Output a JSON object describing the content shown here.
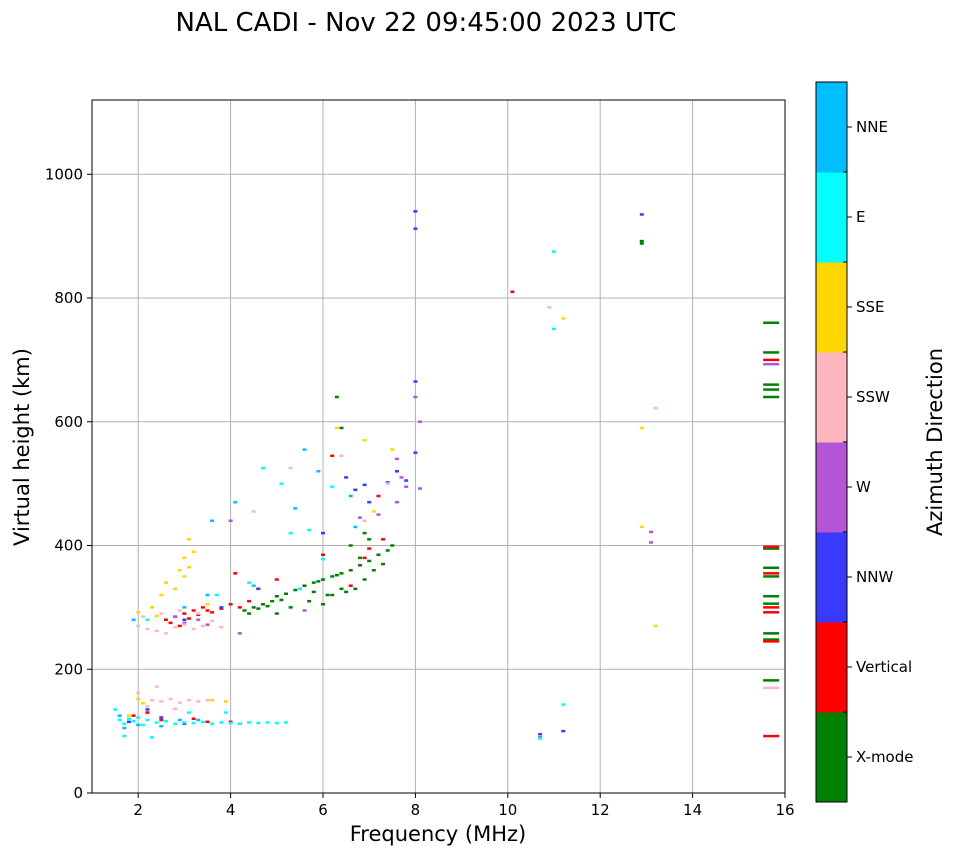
{
  "chart_data": {
    "type": "scatter",
    "title": "NAL CADI - Nov 22 09:45:00 2023 UTC",
    "xlabel": "Frequency (MHz)",
    "ylabel": "Virtual height (km)",
    "xlim": [
      1,
      16
    ],
    "ylim": [
      0,
      1120
    ],
    "xticks": [
      2,
      4,
      6,
      8,
      10,
      12,
      14,
      16
    ],
    "yticks": [
      0,
      200,
      400,
      600,
      800,
      1000
    ],
    "grid": true,
    "colorbar": {
      "title": "Azimuth Direction",
      "categories": [
        {
          "name": "X-mode",
          "color": "#008000"
        },
        {
          "name": "Vertical",
          "color": "#ff0000"
        },
        {
          "name": "NNW",
          "color": "#3a3aff"
        },
        {
          "name": "W",
          "color": "#b455d6"
        },
        {
          "name": "SSW",
          "color": "#ffb6c1"
        },
        {
          "name": "SSE",
          "color": "#ffd700"
        },
        {
          "name": "E",
          "color": "#00ffff"
        },
        {
          "name": "NNE",
          "color": "#00bfff"
        }
      ]
    },
    "series": [
      {
        "name": "X-mode",
        "points": [
          [
            4.3,
            295
          ],
          [
            4.5,
            300
          ],
          [
            4.7,
            305
          ],
          [
            4.9,
            310
          ],
          [
            5.0,
            318
          ],
          [
            5.2,
            322
          ],
          [
            5.4,
            328
          ],
          [
            5.6,
            335
          ],
          [
            5.8,
            340
          ],
          [
            6.0,
            345
          ],
          [
            6.2,
            350
          ],
          [
            6.4,
            355
          ],
          [
            6.6,
            360
          ],
          [
            6.8,
            368
          ],
          [
            7.0,
            375
          ],
          [
            7.2,
            385
          ],
          [
            7.4,
            392
          ],
          [
            4.4,
            290
          ],
          [
            4.8,
            302
          ],
          [
            5.1,
            312
          ],
          [
            5.5,
            330
          ],
          [
            5.9,
            342
          ],
          [
            6.3,
            352
          ],
          [
            6.5,
            325
          ],
          [
            6.7,
            330
          ],
          [
            6.9,
            345
          ],
          [
            7.1,
            360
          ],
          [
            4.6,
            298
          ],
          [
            5.3,
            300
          ],
          [
            5.7,
            310
          ],
          [
            6.1,
            320
          ],
          [
            6.4,
            330
          ],
          [
            6.8,
            380
          ],
          [
            7.3,
            370
          ],
          [
            6.0,
            305
          ],
          [
            6.2,
            320
          ],
          [
            6.6,
            400
          ],
          [
            7.0,
            410
          ],
          [
            6.9,
            420
          ],
          [
            7.5,
            400
          ],
          [
            5.0,
            290
          ],
          [
            5.8,
            325
          ],
          [
            6.3,
            640
          ],
          [
            6.4,
            590
          ],
          [
            15.7,
            760
          ],
          [
            15.7,
            712
          ],
          [
            15.7,
            660
          ],
          [
            15.7,
            652
          ],
          [
            15.7,
            640
          ],
          [
            15.7,
            395
          ],
          [
            15.7,
            364
          ],
          [
            15.7,
            350
          ],
          [
            15.7,
            318
          ],
          [
            15.7,
            306
          ],
          [
            15.7,
            258
          ],
          [
            15.7,
            248
          ],
          [
            15.7,
            182
          ],
          [
            12.9,
            888
          ],
          [
            12.9,
            892
          ]
        ]
      },
      {
        "name": "Vertical",
        "points": [
          [
            2.6,
            280
          ],
          [
            2.8,
            285
          ],
          [
            3.0,
            290
          ],
          [
            3.2,
            295
          ],
          [
            3.4,
            300
          ],
          [
            3.6,
            292
          ],
          [
            3.8,
            298
          ],
          [
            4.0,
            305
          ],
          [
            4.2,
            300
          ],
          [
            2.7,
            275
          ],
          [
            2.9,
            270
          ],
          [
            3.1,
            282
          ],
          [
            3.3,
            288
          ],
          [
            3.5,
            295
          ],
          [
            4.1,
            355
          ],
          [
            4.4,
            310
          ],
          [
            4.6,
            330
          ],
          [
            5.0,
            345
          ],
          [
            6.0,
            385
          ],
          [
            6.6,
            335
          ],
          [
            7.0,
            395
          ],
          [
            7.3,
            410
          ],
          [
            1.9,
            125
          ],
          [
            2.2,
            130
          ],
          [
            2.5,
            118
          ],
          [
            3.5,
            115
          ],
          [
            4.0,
            115
          ],
          [
            4.2,
            112
          ],
          [
            3.2,
            120
          ],
          [
            6.2,
            545
          ],
          [
            7.2,
            480
          ],
          [
            6.9,
            380
          ],
          [
            10.1,
            810
          ],
          [
            15.7,
            700
          ],
          [
            15.7,
            398
          ],
          [
            15.7,
            355
          ],
          [
            15.7,
            300
          ],
          [
            15.7,
            292
          ],
          [
            15.7,
            245
          ],
          [
            15.7,
            92
          ]
        ]
      },
      {
        "name": "NNW",
        "points": [
          [
            8.0,
            940
          ],
          [
            8.0,
            912
          ],
          [
            8.0,
            665
          ],
          [
            8.0,
            550
          ],
          [
            6.7,
            490
          ],
          [
            6.9,
            498
          ],
          [
            7.4,
            502
          ],
          [
            7.6,
            520
          ],
          [
            7.0,
            470
          ],
          [
            6.5,
            510
          ],
          [
            7.8,
            505
          ],
          [
            6.0,
            420
          ],
          [
            3.8,
            300
          ],
          [
            3.0,
            280
          ],
          [
            4.6,
            330
          ],
          [
            2.2,
            135
          ],
          [
            1.8,
            115
          ],
          [
            2.5,
            122
          ],
          [
            3.0,
            112
          ],
          [
            10.7,
            95
          ],
          [
            11.2,
            100
          ],
          [
            12.9,
            935
          ]
        ]
      },
      {
        "name": "W",
        "points": [
          [
            7.6,
            540
          ],
          [
            7.7,
            510
          ],
          [
            7.8,
            495
          ],
          [
            8.1,
            600
          ],
          [
            8.0,
            640
          ],
          [
            8.1,
            492
          ],
          [
            7.2,
            450
          ],
          [
            7.6,
            470
          ],
          [
            6.8,
            445
          ],
          [
            4.0,
            440
          ],
          [
            3.0,
            275
          ],
          [
            2.8,
            285
          ],
          [
            3.5,
            272
          ],
          [
            3.3,
            280
          ],
          [
            4.2,
            258
          ],
          [
            5.6,
            295
          ],
          [
            13.1,
            422
          ],
          [
            13.1,
            405
          ],
          [
            15.7,
            693
          ],
          [
            10.7,
            90
          ]
        ]
      },
      {
        "name": "SSW",
        "points": [
          [
            2.0,
            270
          ],
          [
            2.2,
            265
          ],
          [
            2.4,
            262
          ],
          [
            2.6,
            258
          ],
          [
            2.8,
            268
          ],
          [
            3.0,
            272
          ],
          [
            3.2,
            265
          ],
          [
            3.4,
            270
          ],
          [
            3.6,
            278
          ],
          [
            3.8,
            268
          ],
          [
            2.1,
            285
          ],
          [
            2.5,
            290
          ],
          [
            2.9,
            295
          ],
          [
            3.3,
            290
          ],
          [
            2.3,
            150
          ],
          [
            2.5,
            148
          ],
          [
            2.7,
            152
          ],
          [
            2.9,
            146
          ],
          [
            3.1,
            150
          ],
          [
            3.3,
            148
          ],
          [
            3.5,
            150
          ],
          [
            2.0,
            162
          ],
          [
            2.4,
            172
          ],
          [
            2.2,
            140
          ],
          [
            2.8,
            136
          ],
          [
            4.5,
            455
          ],
          [
            5.3,
            525
          ],
          [
            6.4,
            545
          ],
          [
            6.9,
            440
          ],
          [
            7.4,
            500
          ],
          [
            10.9,
            785
          ],
          [
            13.2,
            622
          ],
          [
            15.7,
            170
          ]
        ]
      },
      {
        "name": "SSE",
        "points": [
          [
            3.0,
            350
          ],
          [
            3.1,
            365
          ],
          [
            3.0,
            380
          ],
          [
            2.9,
            360
          ],
          [
            3.2,
            390
          ],
          [
            3.1,
            410
          ],
          [
            2.6,
            340
          ],
          [
            2.5,
            320
          ],
          [
            2.8,
            330
          ],
          [
            2.3,
            300
          ],
          [
            2.0,
            292
          ],
          [
            2.4,
            286
          ],
          [
            3.5,
            305
          ],
          [
            7.5,
            555
          ],
          [
            6.9,
            570
          ],
          [
            7.1,
            455
          ],
          [
            6.3,
            590
          ],
          [
            1.8,
            125
          ],
          [
            2.1,
            145
          ],
          [
            2.0,
            152
          ],
          [
            3.6,
            150
          ],
          [
            3.9,
            148
          ],
          [
            11.2,
            767
          ],
          [
            12.9,
            590
          ],
          [
            12.9,
            430
          ],
          [
            13.2,
            270
          ]
        ]
      },
      {
        "name": "E",
        "points": [
          [
            1.6,
            118
          ],
          [
            1.7,
            112
          ],
          [
            1.8,
            120
          ],
          [
            1.9,
            116
          ],
          [
            2.0,
            122
          ],
          [
            2.1,
            110
          ],
          [
            2.2,
            118
          ],
          [
            2.4,
            114
          ],
          [
            2.6,
            116
          ],
          [
            2.8,
            112
          ],
          [
            3.0,
            114
          ],
          [
            3.2,
            113
          ],
          [
            3.4,
            115
          ],
          [
            3.6,
            112
          ],
          [
            3.8,
            114
          ],
          [
            4.0,
            113
          ],
          [
            4.2,
            112
          ],
          [
            4.4,
            114
          ],
          [
            4.6,
            113
          ],
          [
            4.8,
            114
          ],
          [
            5.0,
            113
          ],
          [
            5.2,
            114
          ],
          [
            2.3,
            90
          ],
          [
            1.7,
            92
          ],
          [
            1.5,
            135
          ],
          [
            3.1,
            130
          ],
          [
            3.9,
            130
          ],
          [
            2.2,
            280
          ],
          [
            3.7,
            320
          ],
          [
            4.4,
            340
          ],
          [
            5.5,
            330
          ],
          [
            6.0,
            378
          ],
          [
            5.7,
            425
          ],
          [
            5.3,
            420
          ],
          [
            6.2,
            495
          ],
          [
            5.1,
            500
          ],
          [
            4.7,
            525
          ],
          [
            11.0,
            875
          ],
          [
            11.0,
            750
          ],
          [
            11.2,
            143
          ],
          [
            10.7,
            88
          ]
        ]
      },
      {
        "name": "NNE",
        "points": [
          [
            1.9,
            280
          ],
          [
            3.6,
            440
          ],
          [
            4.1,
            470
          ],
          [
            5.6,
            555
          ],
          [
            5.9,
            520
          ],
          [
            6.6,
            480
          ],
          [
            2.0,
            110
          ],
          [
            1.7,
            105
          ],
          [
            2.5,
            108
          ],
          [
            3.3,
            118
          ],
          [
            1.6,
            125
          ],
          [
            2.9,
            118
          ],
          [
            3.5,
            320
          ],
          [
            4.5,
            335
          ],
          [
            3.0,
            300
          ],
          [
            6.7,
            430
          ],
          [
            5.4,
            460
          ]
        ]
      }
    ]
  }
}
